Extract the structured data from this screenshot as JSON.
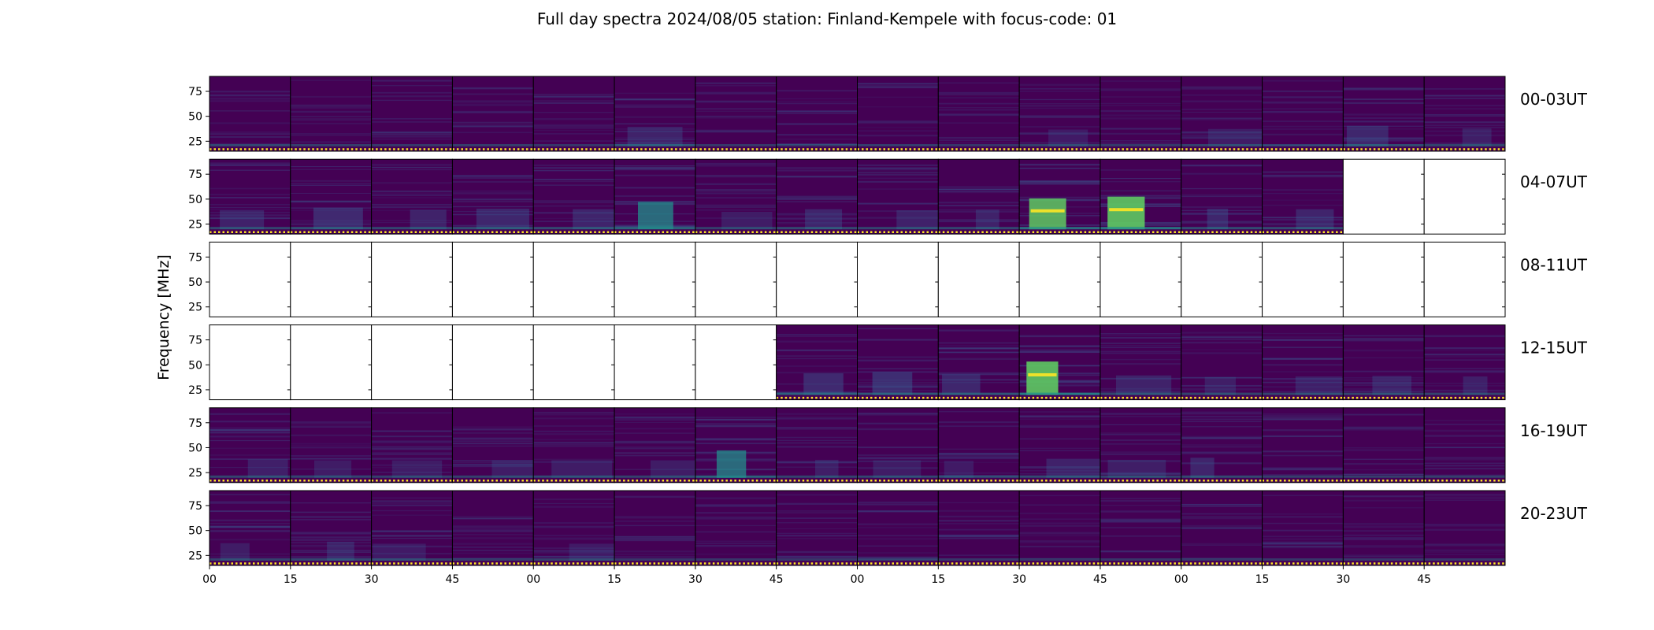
{
  "chart_data": {
    "type": "heatmap",
    "title": "Full day spectra 2024/08/05 station: Finland-Kempele with focus-code: 01",
    "ylabel": "Frequency [MHz]",
    "xlabel": "",
    "y_ticks": [
      25,
      50,
      75
    ],
    "ylim": [
      15,
      90
    ],
    "x_ticks": [
      "00",
      "15",
      "30",
      "45",
      "00",
      "15",
      "30",
      "45",
      "00",
      "15",
      "30",
      "45",
      "00",
      "15",
      "30",
      "45"
    ],
    "colormap": "viridis",
    "panels_per_row": 16,
    "rows": [
      {
        "label": "00-03UT",
        "availability": [
          1,
          1,
          1,
          1,
          1,
          1,
          1,
          1,
          1,
          1,
          1,
          1,
          1,
          1,
          1,
          1
        ],
        "intensity": [
          0.15,
          0.18,
          0.14,
          0.18,
          0.12,
          0.32,
          0.14,
          0.12,
          0.12,
          0.12,
          0.22,
          0.16,
          0.24,
          0.12,
          0.36,
          0.26
        ]
      },
      {
        "label": "04-07UT",
        "availability": [
          1,
          1,
          1,
          1,
          1,
          1,
          1,
          1,
          1,
          1,
          1,
          1,
          1,
          1,
          0,
          0
        ],
        "intensity": [
          0.3,
          0.4,
          0.32,
          0.36,
          0.34,
          0.62,
          0.24,
          0.34,
          0.3,
          0.32,
          0.75,
          0.82,
          0.36,
          0.34,
          0,
          0
        ]
      },
      {
        "label": "08-11UT",
        "availability": [
          0,
          0,
          0,
          0,
          0,
          0,
          0,
          0,
          0,
          0,
          0,
          0,
          0,
          0,
          0,
          0
        ],
        "intensity": [
          0,
          0,
          0,
          0,
          0,
          0,
          0,
          0,
          0,
          0,
          0,
          0,
          0,
          0,
          0,
          0
        ]
      },
      {
        "label": "12-15UT",
        "availability": [
          0,
          0,
          0,
          0,
          0,
          0,
          0,
          1,
          1,
          1,
          1,
          1,
          1,
          1,
          1,
          1
        ],
        "intensity": [
          0,
          0,
          0,
          0,
          0,
          0,
          0,
          0.4,
          0.45,
          0.36,
          0.85,
          0.32,
          0.26,
          0.28,
          0.3,
          0.28
        ]
      },
      {
        "label": "16-19UT",
        "availability": [
          1,
          1,
          1,
          1,
          1,
          1,
          1,
          1,
          1,
          1,
          1,
          1,
          1,
          1,
          1,
          1
        ],
        "intensity": [
          0.28,
          0.24,
          0.24,
          0.24,
          0.24,
          0.24,
          0.62,
          0.26,
          0.24,
          0.22,
          0.3,
          0.26,
          0.34,
          0.2,
          0.18,
          0.18
        ]
      },
      {
        "label": "20-23UT",
        "availability": [
          1,
          1,
          1,
          1,
          1,
          1,
          1,
          1,
          1,
          1,
          1,
          1,
          1,
          1,
          1,
          1
        ],
        "intensity": [
          0.24,
          0.3,
          0.22,
          0.16,
          0.22,
          0.12,
          0.12,
          0.12,
          0.12,
          0.12,
          0.12,
          0.12,
          0.12,
          0.12,
          0.12,
          0.12
        ]
      }
    ],
    "grid": false,
    "legend": "none"
  },
  "colors": {
    "background_dark": "#440154",
    "mid_blue": "#3b528b",
    "teal": "#21918c",
    "green": "#5ec962",
    "yellow": "#fde725",
    "frame": "#000000",
    "empty_panel": "#ffffff"
  }
}
